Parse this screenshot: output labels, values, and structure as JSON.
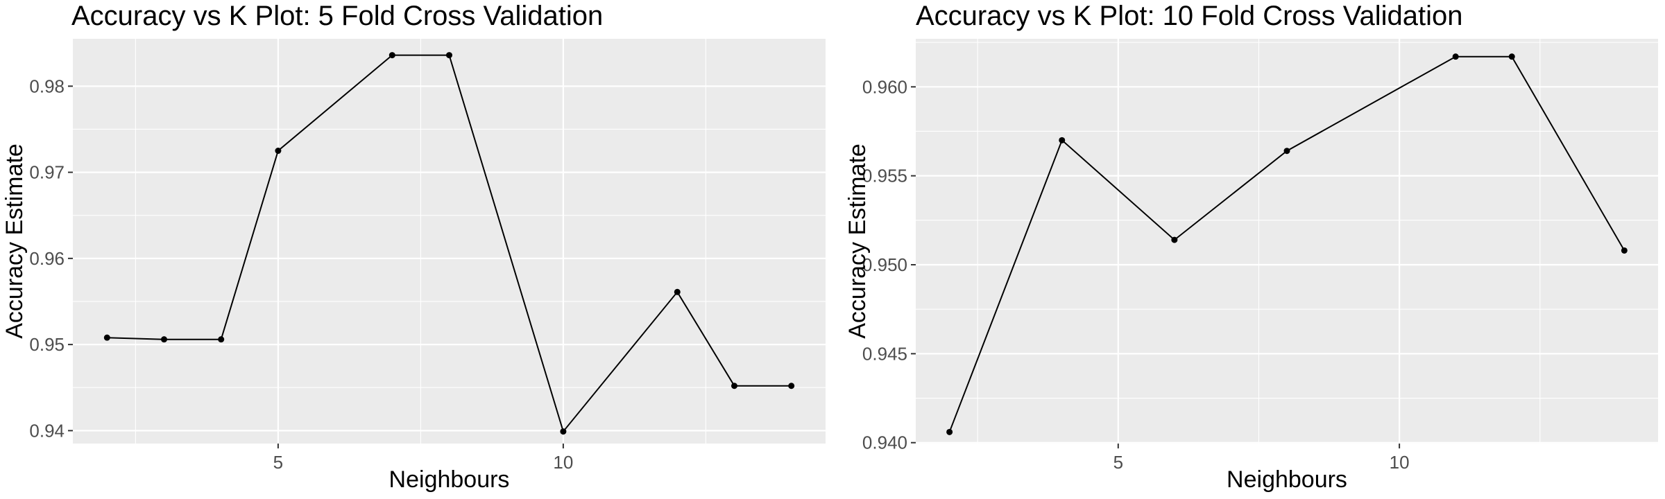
{
  "chart_data": [
    {
      "type": "line",
      "title": "Accuracy vs K Plot: 5 Fold Cross Validation",
      "xlabel": "Neighbours",
      "ylabel": "Accuracy Estimate",
      "xlim": [
        1.4,
        14.6
      ],
      "ylim": [
        0.9385,
        0.9855
      ],
      "xticks": [
        5,
        10
      ],
      "xtick_labels": [
        "5",
        "10"
      ],
      "xminor": [
        2.5,
        7.5,
        12.5
      ],
      "yticks": [
        0.94,
        0.95,
        0.96,
        0.97,
        0.98
      ],
      "ytick_labels": [
        "0.94",
        "0.95",
        "0.96",
        "0.97",
        "0.98"
      ],
      "yminor": [
        0.945,
        0.955,
        0.965,
        0.975
      ],
      "grid": true,
      "series": [
        {
          "name": "accuracy",
          "x": [
            2,
            3,
            4,
            5,
            7,
            8,
            10,
            12,
            13,
            14
          ],
          "y": [
            0.9508,
            0.9506,
            0.9506,
            0.9725,
            0.9836,
            0.9836,
            0.9399,
            0.9561,
            0.9452,
            0.9452
          ]
        }
      ]
    },
    {
      "type": "line",
      "title": "Accuracy vs K Plot: 10 Fold Cross Validation",
      "xlabel": "Neighbours",
      "ylabel": "Accuracy Estimate",
      "xlim": [
        1.4,
        14.6
      ],
      "ylim": [
        0.93995,
        0.9627
      ],
      "xticks": [
        5,
        10
      ],
      "xtick_labels": [
        "5",
        "10"
      ],
      "xminor": [
        2.5,
        7.5,
        12.5
      ],
      "yticks": [
        0.94,
        0.945,
        0.95,
        0.955,
        0.96
      ],
      "ytick_labels": [
        "0.940",
        "0.945",
        "0.950",
        "0.955",
        "0.960"
      ],
      "yminor": [
        0.9425,
        0.9475,
        0.9525,
        0.9575,
        0.9625
      ],
      "grid": true,
      "series": [
        {
          "name": "accuracy",
          "x": [
            2,
            4,
            6,
            8,
            11,
            12,
            14
          ],
          "y": [
            0.9406,
            0.957,
            0.9514,
            0.9564,
            0.9617,
            0.9617,
            0.9508
          ]
        }
      ]
    }
  ]
}
